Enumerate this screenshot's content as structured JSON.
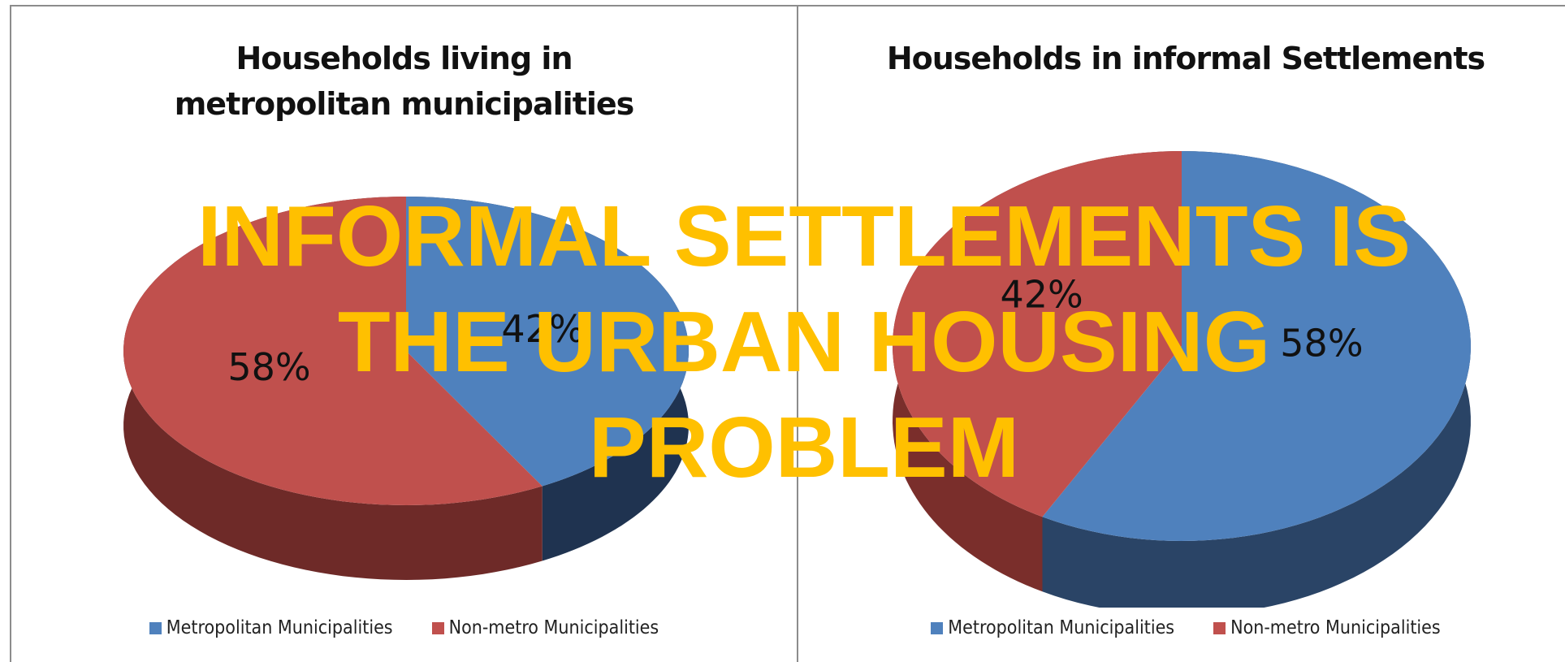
{
  "chart_data": [
    {
      "type": "pie",
      "title": "Households living in metropolitan municipalities",
      "categories": [
        "Metropolitan Municipalities",
        "Non-metro Municipalities"
      ],
      "values": [
        42,
        58
      ],
      "value_labels": [
        "42%",
        "58%"
      ],
      "colors": [
        "#4f81bd",
        "#c0504d"
      ],
      "side_colors": [
        "#1f3350",
        "#6e2a28"
      ]
    },
    {
      "type": "pie",
      "title": "Households in informal Settlements",
      "categories": [
        "Metropolitan Municipalities",
        "Non-metro Municipalities"
      ],
      "values": [
        58,
        42
      ],
      "value_labels": [
        "58%",
        "42%"
      ],
      "colors": [
        "#4f81bd",
        "#c0504d"
      ],
      "side_colors": [
        "#2a4466",
        "#7a2e2b"
      ]
    }
  ],
  "overlay": [
    "INFORMAL SETTLEMENTS IS",
    "THE URBAN HOUSING",
    "PROBLEM"
  ]
}
